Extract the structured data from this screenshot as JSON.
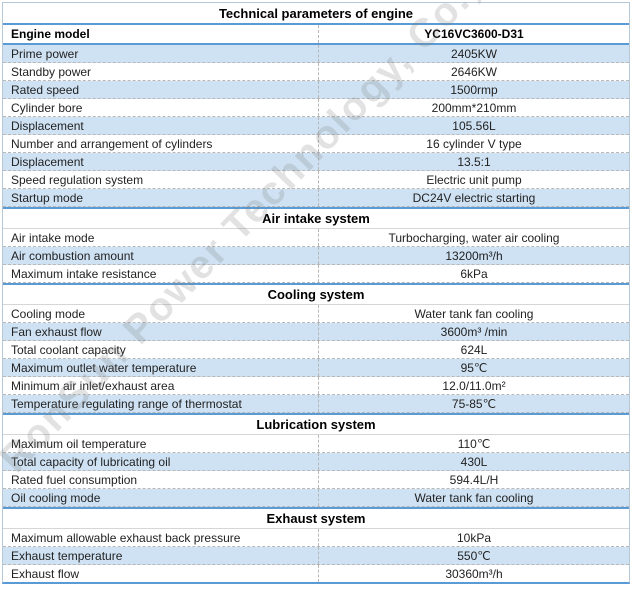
{
  "title": "Technical parameters of engine",
  "model_row": {
    "label": "Engine model",
    "value": "YC16VC3600-D31"
  },
  "sections": [
    {
      "header": "",
      "rows": [
        {
          "label": "Prime power",
          "value": "2405KW"
        },
        {
          "label": "Standby power",
          "value": "2646KW"
        },
        {
          "label": "Rated speed",
          "value": "1500rmp"
        },
        {
          "label": "Cylinder bore",
          "value": "200mm*210mm"
        },
        {
          "label": "Displacement",
          "value": "105.56L"
        },
        {
          "label": "Number and arrangement of cylinders",
          "value": "16 cylinder V type"
        },
        {
          "label": "Displacement",
          "value": "13.5:1"
        },
        {
          "label": "Speed regulation system",
          "value": "Electric unit pump"
        },
        {
          "label": "Startup mode",
          "value": "DC24V electric starting"
        }
      ]
    },
    {
      "header": "Air intake system",
      "rows": [
        {
          "label": "Air intake mode",
          "value": "Turbocharging, water air cooling"
        },
        {
          "label": "Air combustion amount",
          "value": "13200m³/h"
        },
        {
          "label": "Maximum intake resistance",
          "value": "6kPa"
        }
      ]
    },
    {
      "header": "Cooling system",
      "rows": [
        {
          "label": "Cooling mode",
          "value": "Water tank fan cooling"
        },
        {
          "label": "Fan exhaust flow",
          "value": "3600m³ /min"
        },
        {
          "label": "Total coolant capacity",
          "value": "624L"
        },
        {
          "label": "Maximum outlet water temperature",
          "value": "95℃"
        },
        {
          "label": "Minimum air inlet/exhaust area",
          "value": "12.0/11.0m²"
        },
        {
          "label": "Temperature regulating range of thermostat",
          "value": "75-85℃"
        }
      ]
    },
    {
      "header": "Lubrication system",
      "rows": [
        {
          "label": "Maximum oil temperature",
          "value": "110℃"
        },
        {
          "label": "Total capacity of lubricating oil",
          "value": "430L"
        },
        {
          "label": "Rated fuel consumption",
          "value": "594.4L/H"
        },
        {
          "label": "Oil cooling mode",
          "value": "Water tank fan cooling"
        }
      ]
    },
    {
      "header": "Exhaust system",
      "rows": [
        {
          "label": "Maximum allowable exhaust back pressure",
          "value": "10kPa"
        },
        {
          "label": "Exhaust temperature",
          "value": "550℃"
        },
        {
          "label": "Exhaust flow",
          "value": "30360m³/h"
        }
      ]
    }
  ],
  "watermark": {
    "text": "RonSun Power Technology, Co.,"
  },
  "colors": {
    "row_shade": "#cfe2f3",
    "divider_blue": "#5b9bd5",
    "dashed_border": "#b8b8b8"
  }
}
